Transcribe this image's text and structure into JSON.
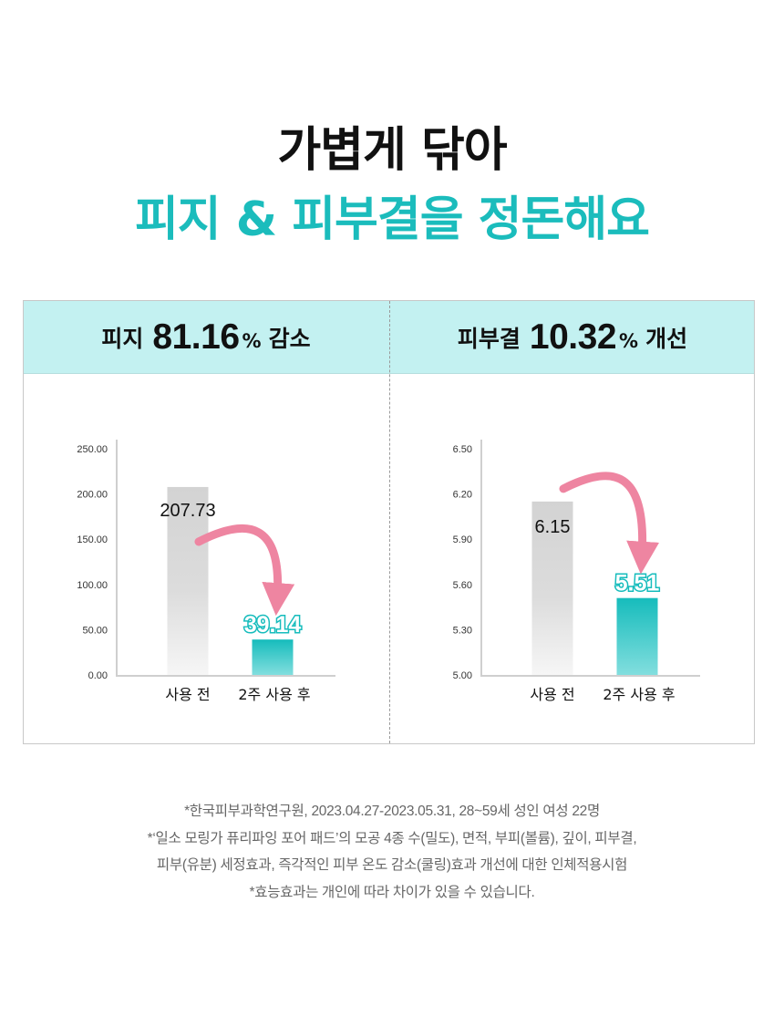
{
  "hero": {
    "line1": "가볍게 닦아",
    "line2": "피지 & 피부결을 정돈해요"
  },
  "colors": {
    "accent": "#1bbcbc",
    "header_bg": "#c3f1f1",
    "arrow": "#ee85a1",
    "bar_before": "#d3d3d3",
    "bar_after": "#16bcbc"
  },
  "panels": [
    {
      "label": "피지",
      "number": "81.16",
      "percent": "%",
      "word": "감소"
    },
    {
      "label": "피부결",
      "number": "10.32",
      "percent": "%",
      "word": "개선"
    }
  ],
  "chart_data": [
    {
      "type": "bar",
      "categories": [
        "사용 전",
        "2주 사용 후"
      ],
      "values": [
        207.73,
        39.14
      ],
      "value_labels": [
        "207.73",
        "39.14"
      ],
      "ylim": [
        0,
        250
      ],
      "ticks": [
        "250.00",
        "200.00",
        "150.00",
        "100.00",
        "50.00",
        "0.00"
      ],
      "tick_values": [
        250,
        200,
        150,
        100,
        50,
        0
      ]
    },
    {
      "type": "bar",
      "categories": [
        "사용 전",
        "2주 사용 후"
      ],
      "values": [
        6.15,
        5.51
      ],
      "value_labels": [
        "6.15",
        "5.51"
      ],
      "ylim": [
        5.0,
        6.5
      ],
      "ticks": [
        "6.50",
        "6.20",
        "5.90",
        "5.60",
        "5.30",
        "5.00"
      ],
      "tick_values": [
        6.5,
        6.2,
        5.9,
        5.6,
        5.3,
        5.0
      ]
    }
  ],
  "footnotes": [
    "*한국피부과학연구원, 2023.04.27-2023.05.31, 28~59세 성인 여성 22명",
    "*‘일소 모링가 퓨리파잉 포어 패드’의 모공 4종 수(밀도), 면적, 부피(볼륨), 깊이, 피부결,",
    "피부(유분) 세정효과, 즉각적인 피부 온도 감소(쿨링)효과 개선에 대한 인체적용시험",
    "*효능효과는 개인에 따라 차이가 있을 수 있습니다."
  ]
}
